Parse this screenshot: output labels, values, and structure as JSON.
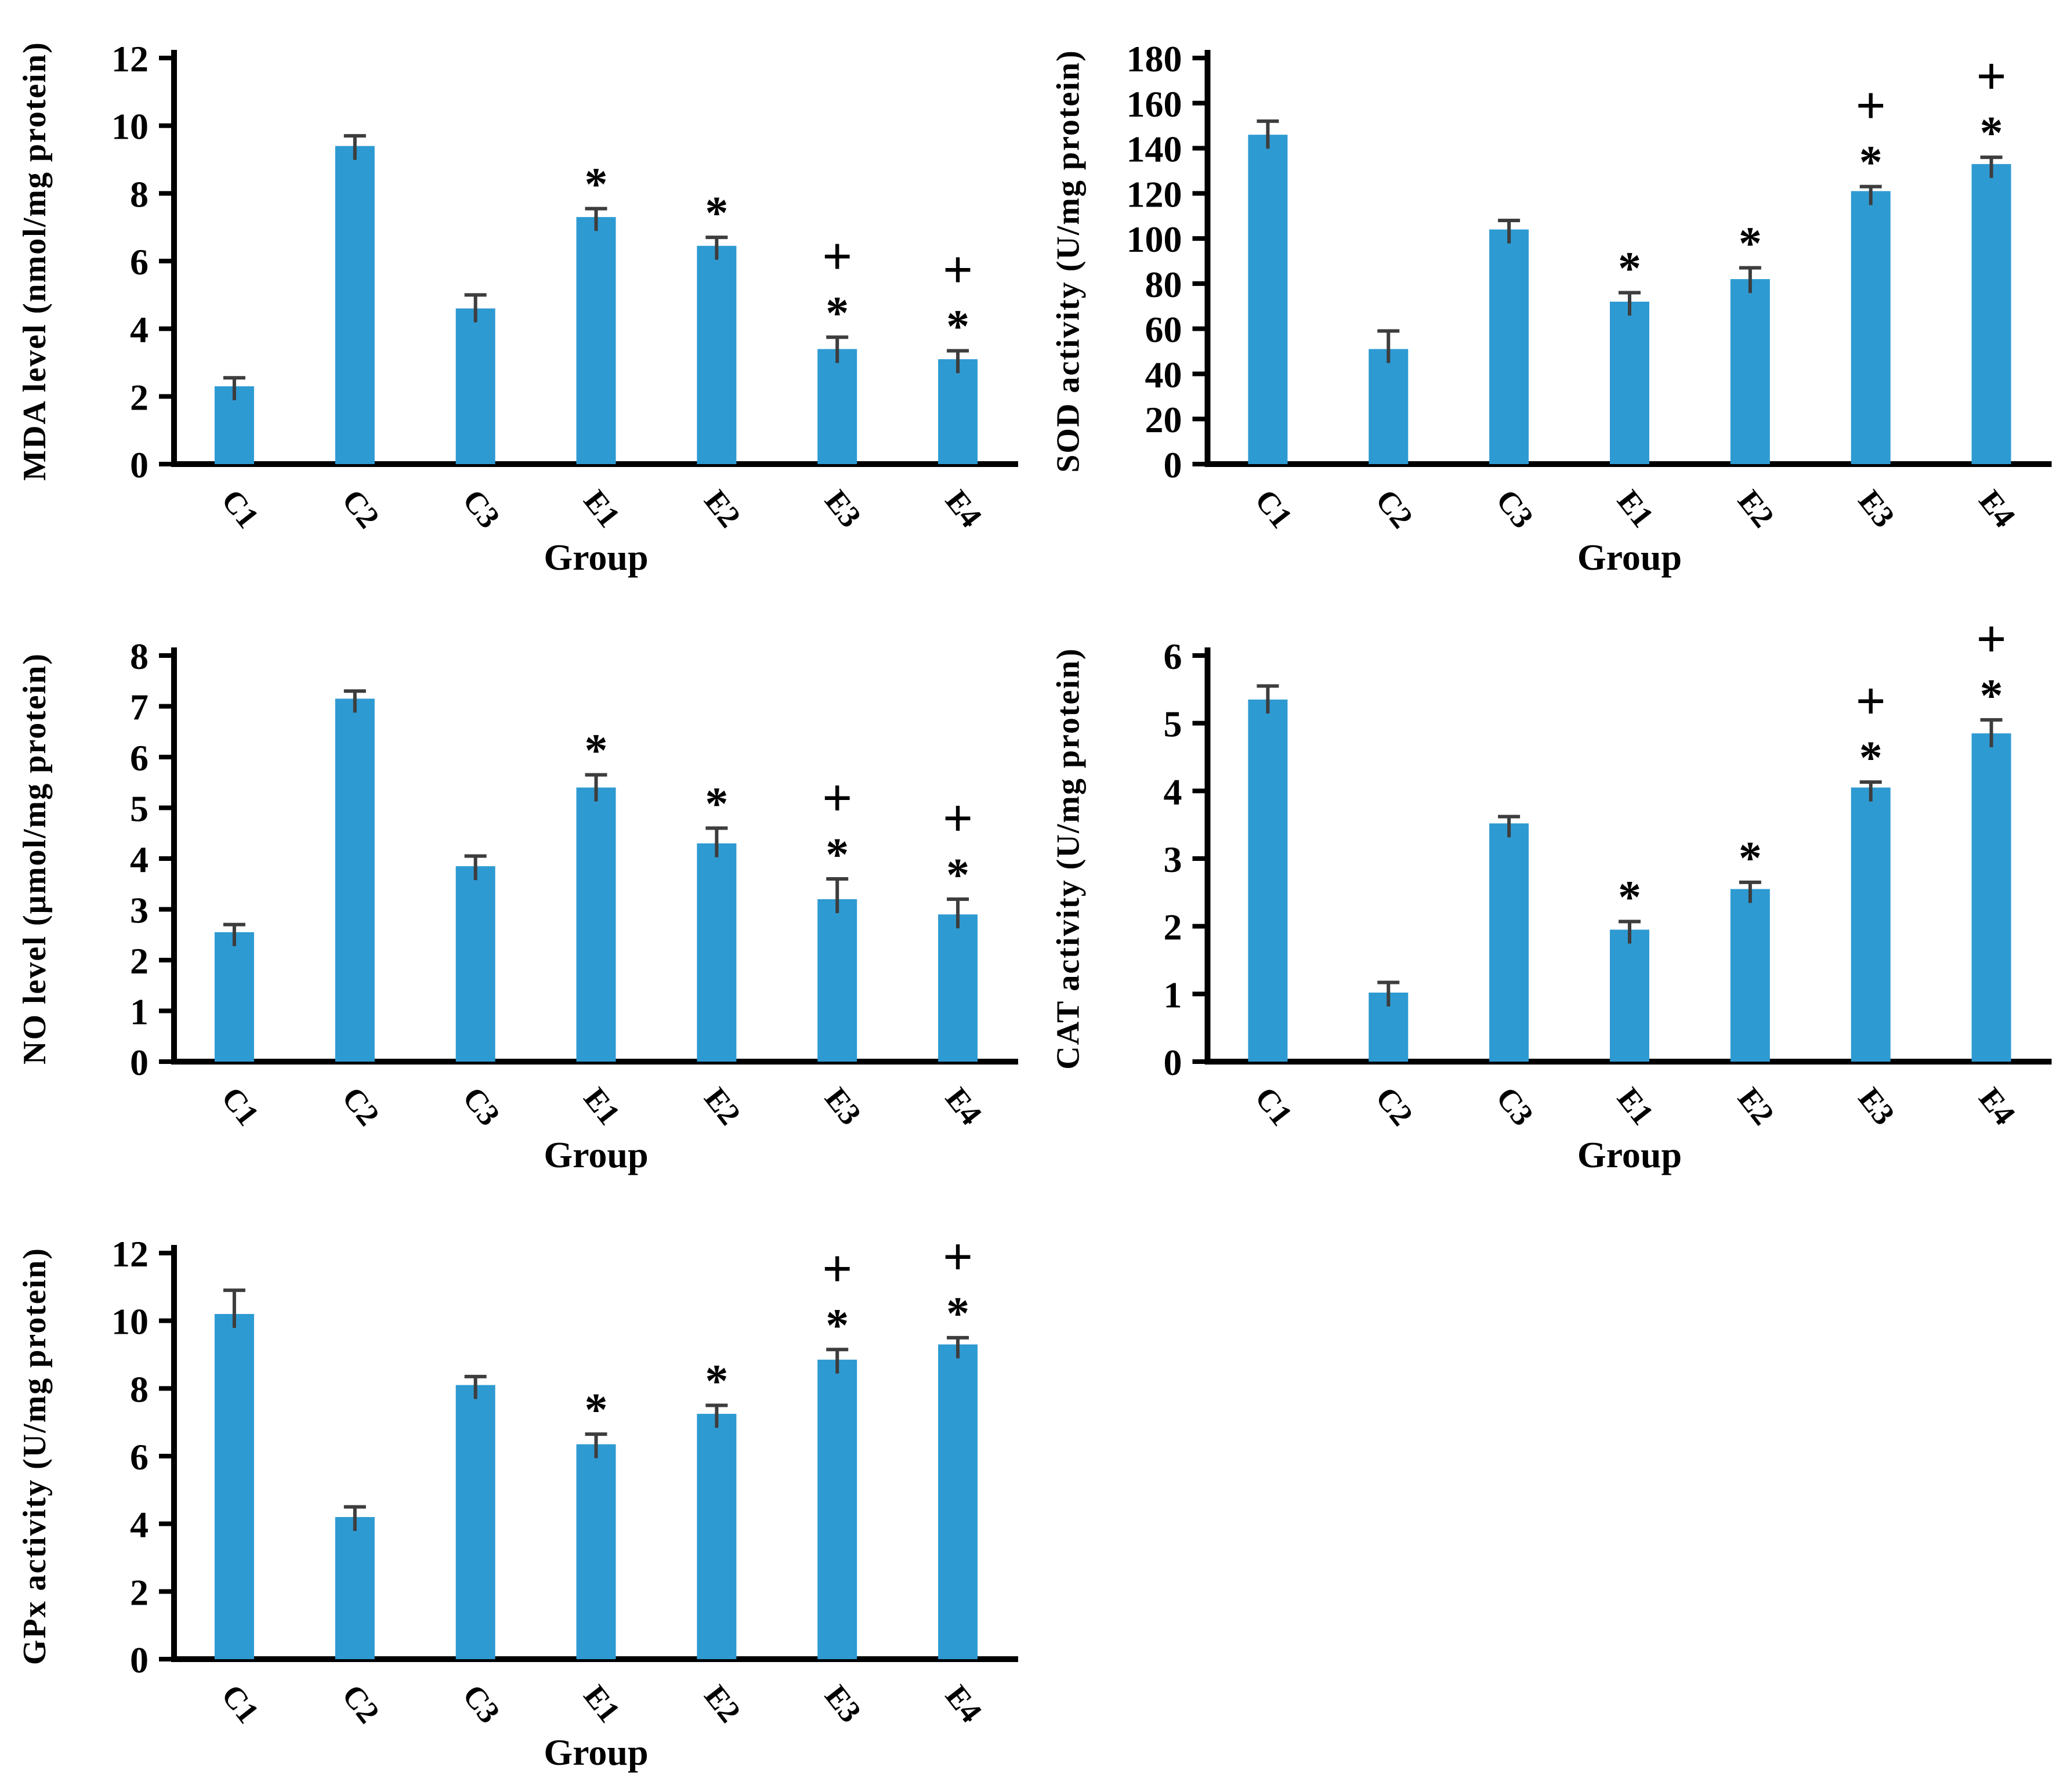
{
  "figure": {
    "background": "#ffffff",
    "bar_color": "#2E9AD2",
    "axis_color": "#000000",
    "error_bar_color": "#3d3d3d",
    "marker_star": "*",
    "marker_plus": "+",
    "xlabel": "Group",
    "categories": [
      "C1",
      "C2",
      "C3",
      "E1",
      "E2",
      "E3",
      "E4"
    ]
  },
  "chart_data": [
    {
      "type": "bar",
      "title": "",
      "ylabel": "MDA level (nmol/mg protein)",
      "xlabel": "Group",
      "categories": [
        "C1",
        "C2",
        "C3",
        "E1",
        "E2",
        "E3",
        "E4"
      ],
      "values": [
        2.3,
        9.4,
        4.6,
        7.3,
        6.45,
        3.4,
        3.1
      ],
      "errors": [
        0.25,
        0.3,
        0.4,
        0.25,
        0.25,
        0.35,
        0.25
      ],
      "markers": [
        "",
        "",
        "",
        "*",
        "*",
        "*+",
        "*+"
      ],
      "ylim": [
        0,
        12
      ],
      "ystep": 2,
      "grid": false,
      "legend": "none"
    },
    {
      "type": "bar",
      "title": "",
      "ylabel": "SOD activity (U/mg protein)",
      "xlabel": "Group",
      "categories": [
        "C1",
        "C2",
        "C3",
        "E1",
        "E2",
        "E3",
        "E4"
      ],
      "values": [
        146,
        51,
        104,
        72,
        82,
        121,
        133
      ],
      "errors": [
        6,
        8,
        4,
        4,
        5,
        2,
        3
      ],
      "markers": [
        "",
        "",
        "",
        "*",
        "*",
        "*+",
        "*+"
      ],
      "ylim": [
        0,
        180
      ],
      "ystep": 20,
      "grid": false,
      "legend": "none"
    },
    {
      "type": "bar",
      "title": "",
      "ylabel": "NO level (µmol/mg protein)",
      "xlabel": "Group",
      "categories": [
        "C1",
        "C2",
        "C3",
        "E1",
        "E2",
        "E3",
        "E4"
      ],
      "values": [
        2.55,
        7.15,
        3.85,
        5.4,
        4.3,
        3.2,
        2.9
      ],
      "errors": [
        0.15,
        0.15,
        0.2,
        0.25,
        0.3,
        0.4,
        0.3
      ],
      "markers": [
        "",
        "",
        "",
        "*",
        "*",
        "*+",
        "*+"
      ],
      "ylim": [
        0,
        8
      ],
      "ystep": 1,
      "grid": false,
      "legend": "none"
    },
    {
      "type": "bar",
      "title": "",
      "ylabel": "CAT activity (U/mg protein)",
      "xlabel": "Group",
      "categories": [
        "C1",
        "C2",
        "C3",
        "E1",
        "E2",
        "E3",
        "E4"
      ],
      "values": [
        5.35,
        1.02,
        3.52,
        1.95,
        2.55,
        4.05,
        4.85
      ],
      "errors": [
        0.2,
        0.15,
        0.1,
        0.12,
        0.1,
        0.08,
        0.2
      ],
      "markers": [
        "",
        "",
        "",
        "*",
        "*",
        "*+",
        "*+"
      ],
      "ylim": [
        0,
        6
      ],
      "ystep": 1,
      "grid": false,
      "legend": "none"
    },
    {
      "type": "bar",
      "title": "",
      "ylabel": "GPx activity (U/mg protein)",
      "xlabel": "Group",
      "categories": [
        "C1",
        "C2",
        "C3",
        "E1",
        "E2",
        "E3",
        "E4"
      ],
      "values": [
        10.2,
        4.2,
        8.1,
        6.35,
        7.25,
        8.85,
        9.3
      ],
      "errors": [
        0.7,
        0.3,
        0.25,
        0.3,
        0.25,
        0.3,
        0.2
      ],
      "markers": [
        "",
        "",
        "",
        "*",
        "*",
        "*+",
        "*+"
      ],
      "ylim": [
        0,
        12
      ],
      "ystep": 2,
      "grid": false,
      "legend": "none"
    }
  ]
}
